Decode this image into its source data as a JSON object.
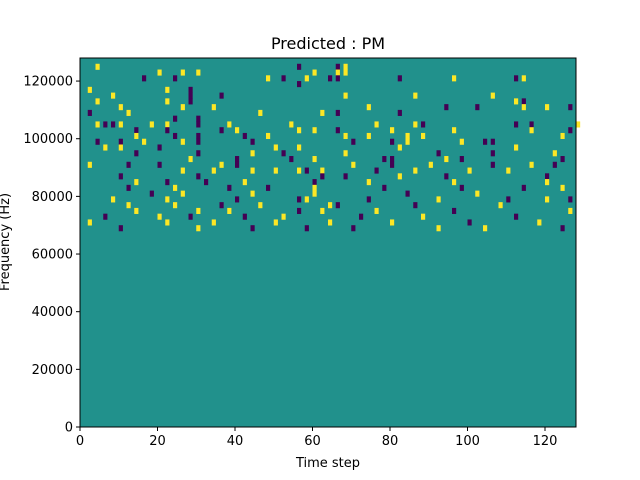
{
  "chart_data": {
    "type": "heatmap",
    "title": "Predicted : PM",
    "xlabel": "Time step",
    "ylabel": "Frequency (Hz)",
    "xlim": [
      0,
      128
    ],
    "ylim": [
      0,
      128000
    ],
    "x_ticks": [
      "0",
      "20",
      "40",
      "60",
      "80",
      "100",
      "120"
    ],
    "y_ticks": [
      "0",
      "20000",
      "40000",
      "60000",
      "80000",
      "100000",
      "120000"
    ],
    "n_time_steps": 128,
    "n_freq_bins": 64,
    "bin_height_hz": 2000,
    "background_value": 0,
    "colors": {
      "low": "#440154",
      "mid": "#21918c",
      "high": "#fde725"
    },
    "cells": [
      {
        "t": 4,
        "f": 62,
        "v": 1
      },
      {
        "t": 56,
        "f": 62,
        "v": -1
      },
      {
        "t": 66,
        "f": 62,
        "v": -1
      },
      {
        "t": 68,
        "f": 62,
        "v": 1
      },
      {
        "t": 68,
        "f": 61,
        "v": 1
      },
      {
        "t": 20,
        "f": 61,
        "v": 1
      },
      {
        "t": 26,
        "f": 61,
        "v": 1
      },
      {
        "t": 30,
        "f": 61,
        "v": 1
      },
      {
        "t": 60,
        "f": 61,
        "v": 1
      },
      {
        "t": 66,
        "f": 61,
        "v": 1
      },
      {
        "t": 66,
        "f": 60,
        "v": -1
      },
      {
        "t": 16,
        "f": 60,
        "v": -1
      },
      {
        "t": 24,
        "f": 60,
        "v": -1
      },
      {
        "t": 48,
        "f": 60,
        "v": 1
      },
      {
        "t": 52,
        "f": 60,
        "v": -1
      },
      {
        "t": 58,
        "f": 60,
        "v": 1
      },
      {
        "t": 64,
        "f": 60,
        "v": -1
      },
      {
        "t": 82,
        "f": 60,
        "v": -1
      },
      {
        "t": 96,
        "f": 60,
        "v": 1
      },
      {
        "t": 112,
        "f": 60,
        "v": -1
      },
      {
        "t": 114,
        "f": 60,
        "v": 1
      },
      {
        "t": 56,
        "f": 59,
        "v": -1
      },
      {
        "t": 22,
        "f": 58,
        "v": 1
      },
      {
        "t": 28,
        "f": 58,
        "v": -1
      },
      {
        "t": 2,
        "f": 58,
        "v": 1
      },
      {
        "t": 28,
        "f": 57,
        "v": -1
      },
      {
        "t": 36,
        "f": 57,
        "v": -1
      },
      {
        "t": 8,
        "f": 57,
        "v": 1
      },
      {
        "t": 68,
        "f": 57,
        "v": 1
      },
      {
        "t": 86,
        "f": 57,
        "v": 1
      },
      {
        "t": 106,
        "f": 57,
        "v": 1
      },
      {
        "t": 4,
        "f": 56,
        "v": 1
      },
      {
        "t": 22,
        "f": 56,
        "v": 1
      },
      {
        "t": 28,
        "f": 56,
        "v": -1
      },
      {
        "t": 112,
        "f": 56,
        "v": 1
      },
      {
        "t": 114,
        "f": 56,
        "v": -1
      },
      {
        "t": 10,
        "f": 55,
        "v": 1
      },
      {
        "t": 26,
        "f": 55,
        "v": 1
      },
      {
        "t": 34,
        "f": 55,
        "v": 1
      },
      {
        "t": 74,
        "f": 55,
        "v": 1
      },
      {
        "t": 94,
        "f": 55,
        "v": -1
      },
      {
        "t": 102,
        "f": 55,
        "v": -1
      },
      {
        "t": 114,
        "f": 55,
        "v": 1
      },
      {
        "t": 120,
        "f": 55,
        "v": 1
      },
      {
        "t": 126,
        "f": 55,
        "v": -1
      },
      {
        "t": 2,
        "f": 54,
        "v": -1
      },
      {
        "t": 12,
        "f": 54,
        "v": 1
      },
      {
        "t": 46,
        "f": 54,
        "v": 1
      },
      {
        "t": 62,
        "f": 54,
        "v": 1
      },
      {
        "t": 66,
        "f": 54,
        "v": -1
      },
      {
        "t": 82,
        "f": 54,
        "v": -1
      },
      {
        "t": 24,
        "f": 53,
        "v": -1
      },
      {
        "t": 30,
        "f": 53,
        "v": -1
      },
      {
        "t": 4,
        "f": 52,
        "v": 1
      },
      {
        "t": 6,
        "f": 52,
        "v": -1
      },
      {
        "t": 8,
        "f": 52,
        "v": -1
      },
      {
        "t": 10,
        "f": 52,
        "v": 1
      },
      {
        "t": 18,
        "f": 52,
        "v": 1
      },
      {
        "t": 22,
        "f": 52,
        "v": 1
      },
      {
        "t": 30,
        "f": 52,
        "v": -1
      },
      {
        "t": 38,
        "f": 52,
        "v": 1
      },
      {
        "t": 54,
        "f": 52,
        "v": 1
      },
      {
        "t": 76,
        "f": 52,
        "v": 1
      },
      {
        "t": 86,
        "f": 52,
        "v": 1
      },
      {
        "t": 88,
        "f": 52,
        "v": -1
      },
      {
        "t": 112,
        "f": 52,
        "v": -1
      },
      {
        "t": 116,
        "f": 52,
        "v": -1
      },
      {
        "t": 128,
        "f": 52,
        "v": 1
      },
      {
        "t": 14,
        "f": 51,
        "v": -1
      },
      {
        "t": 22,
        "f": 51,
        "v": -1
      },
      {
        "t": 36,
        "f": 51,
        "v": -1
      },
      {
        "t": 40,
        "f": 51,
        "v": 1
      },
      {
        "t": 56,
        "f": 51,
        "v": 1
      },
      {
        "t": 60,
        "f": 51,
        "v": 1
      },
      {
        "t": 66,
        "f": 51,
        "v": -1
      },
      {
        "t": 80,
        "f": 51,
        "v": 1
      },
      {
        "t": 96,
        "f": 51,
        "v": 1
      },
      {
        "t": 116,
        "f": 51,
        "v": 1
      },
      {
        "t": 126,
        "f": 51,
        "v": -1
      },
      {
        "t": 14,
        "f": 50,
        "v": 1
      },
      {
        "t": 24,
        "f": 50,
        "v": -1
      },
      {
        "t": 30,
        "f": 50,
        "v": -1
      },
      {
        "t": 42,
        "f": 50,
        "v": -1
      },
      {
        "t": 48,
        "f": 50,
        "v": 1
      },
      {
        "t": 68,
        "f": 50,
        "v": 1
      },
      {
        "t": 74,
        "f": 50,
        "v": 1
      },
      {
        "t": 84,
        "f": 50,
        "v": 1
      },
      {
        "t": 88,
        "f": 50,
        "v": 1
      },
      {
        "t": 124,
        "f": 50,
        "v": 1
      },
      {
        "t": 4,
        "f": 49,
        "v": -1
      },
      {
        "t": 10,
        "f": 49,
        "v": -1
      },
      {
        "t": 16,
        "f": 49,
        "v": 1
      },
      {
        "t": 26,
        "f": 49,
        "v": 1
      },
      {
        "t": 30,
        "f": 49,
        "v": -1
      },
      {
        "t": 44,
        "f": 49,
        "v": -1
      },
      {
        "t": 70,
        "f": 49,
        "v": -1
      },
      {
        "t": 80,
        "f": 49,
        "v": -1
      },
      {
        "t": 84,
        "f": 49,
        "v": 1
      },
      {
        "t": 98,
        "f": 49,
        "v": 1
      },
      {
        "t": 104,
        "f": 49,
        "v": -1
      },
      {
        "t": 106,
        "f": 49,
        "v": -1
      },
      {
        "t": 6,
        "f": 48,
        "v": 1
      },
      {
        "t": 10,
        "f": 48,
        "v": 1
      },
      {
        "t": 20,
        "f": 48,
        "v": -1
      },
      {
        "t": 50,
        "f": 48,
        "v": 1
      },
      {
        "t": 56,
        "f": 48,
        "v": 1
      },
      {
        "t": 82,
        "f": 48,
        "v": 1
      },
      {
        "t": 112,
        "f": 48,
        "v": 1
      },
      {
        "t": 14,
        "f": 47,
        "v": -1
      },
      {
        "t": 30,
        "f": 47,
        "v": -1
      },
      {
        "t": 44,
        "f": 47,
        "v": 1
      },
      {
        "t": 52,
        "f": 47,
        "v": -1
      },
      {
        "t": 68,
        "f": 47,
        "v": 1
      },
      {
        "t": 92,
        "f": 47,
        "v": -1
      },
      {
        "t": 106,
        "f": 47,
        "v": -1
      },
      {
        "t": 122,
        "f": 47,
        "v": 1
      },
      {
        "t": 28,
        "f": 46,
        "v": 1
      },
      {
        "t": 40,
        "f": 46,
        "v": -1
      },
      {
        "t": 54,
        "f": 46,
        "v": -1
      },
      {
        "t": 60,
        "f": 46,
        "v": 1
      },
      {
        "t": 78,
        "f": 46,
        "v": -1
      },
      {
        "t": 80,
        "f": 46,
        "v": -1
      },
      {
        "t": 94,
        "f": 46,
        "v": 1
      },
      {
        "t": 98,
        "f": 46,
        "v": -1
      },
      {
        "t": 124,
        "f": 46,
        "v": -1
      },
      {
        "t": 12,
        "f": 45,
        "v": -1
      },
      {
        "t": 20,
        "f": 45,
        "v": -1
      },
      {
        "t": 36,
        "f": 45,
        "v": 1
      },
      {
        "t": 40,
        "f": 45,
        "v": -1
      },
      {
        "t": 2,
        "f": 45,
        "v": 1
      },
      {
        "t": 70,
        "f": 45,
        "v": 1
      },
      {
        "t": 80,
        "f": 45,
        "v": -1
      },
      {
        "t": 90,
        "f": 45,
        "v": 1
      },
      {
        "t": 106,
        "f": 45,
        "v": -1
      },
      {
        "t": 116,
        "f": 45,
        "v": 1
      },
      {
        "t": 122,
        "f": 45,
        "v": -1
      },
      {
        "t": 26,
        "f": 44,
        "v": 1
      },
      {
        "t": 34,
        "f": 44,
        "v": 1
      },
      {
        "t": 44,
        "f": 44,
        "v": 1
      },
      {
        "t": 50,
        "f": 44,
        "v": 1
      },
      {
        "t": 56,
        "f": 44,
        "v": 1
      },
      {
        "t": 58,
        "f": 44,
        "v": -1
      },
      {
        "t": 62,
        "f": 44,
        "v": 1
      },
      {
        "t": 76,
        "f": 44,
        "v": -1
      },
      {
        "t": 86,
        "f": 44,
        "v": 1
      },
      {
        "t": 100,
        "f": 44,
        "v": 1
      },
      {
        "t": 110,
        "f": 44,
        "v": 1
      },
      {
        "t": 10,
        "f": 43,
        "v": -1
      },
      {
        "t": 30,
        "f": 43,
        "v": -1
      },
      {
        "t": 62,
        "f": 43,
        "v": -1
      },
      {
        "t": 68,
        "f": 43,
        "v": -1
      },
      {
        "t": 82,
        "f": 43,
        "v": 1
      },
      {
        "t": 94,
        "f": 43,
        "v": -1
      },
      {
        "t": 120,
        "f": 43,
        "v": -1
      },
      {
        "t": 14,
        "f": 42,
        "v": 1
      },
      {
        "t": 22,
        "f": 42,
        "v": -1
      },
      {
        "t": 32,
        "f": 42,
        "v": -1
      },
      {
        "t": 42,
        "f": 42,
        "v": 1
      },
      {
        "t": 60,
        "f": 42,
        "v": -1
      },
      {
        "t": 74,
        "f": 42,
        "v": 1
      },
      {
        "t": 96,
        "f": 42,
        "v": 1
      },
      {
        "t": 120,
        "f": 42,
        "v": 1
      },
      {
        "t": 12,
        "f": 41,
        "v": -1
      },
      {
        "t": 24,
        "f": 41,
        "v": 1
      },
      {
        "t": 38,
        "f": 41,
        "v": -1
      },
      {
        "t": 48,
        "f": 41,
        "v": -1
      },
      {
        "t": 60,
        "f": 41,
        "v": 1
      },
      {
        "t": 78,
        "f": 41,
        "v": -1
      },
      {
        "t": 98,
        "f": 41,
        "v": -1
      },
      {
        "t": 114,
        "f": 41,
        "v": -1
      },
      {
        "t": 124,
        "f": 41,
        "v": 1
      },
      {
        "t": 18,
        "f": 40,
        "v": -1
      },
      {
        "t": 26,
        "f": 40,
        "v": 1
      },
      {
        "t": 44,
        "f": 40,
        "v": 1
      },
      {
        "t": 60,
        "f": 40,
        "v": 1
      },
      {
        "t": 84,
        "f": 40,
        "v": -1
      },
      {
        "t": 102,
        "f": 40,
        "v": 1
      },
      {
        "t": 8,
        "f": 39,
        "v": 1
      },
      {
        "t": 22,
        "f": 39,
        "v": 1
      },
      {
        "t": 40,
        "f": 39,
        "v": -1
      },
      {
        "t": 56,
        "f": 39,
        "v": -1
      },
      {
        "t": 58,
        "f": 39,
        "v": 1
      },
      {
        "t": 74,
        "f": 39,
        "v": -1
      },
      {
        "t": 92,
        "f": 39,
        "v": 1
      },
      {
        "t": 110,
        "f": 39,
        "v": -1
      },
      {
        "t": 120,
        "f": 39,
        "v": 1
      },
      {
        "t": 126,
        "f": 39,
        "v": -1
      },
      {
        "t": 12,
        "f": 38,
        "v": 1
      },
      {
        "t": 24,
        "f": 38,
        "v": 1
      },
      {
        "t": 36,
        "f": 38,
        "v": -1
      },
      {
        "t": 46,
        "f": 38,
        "v": 1
      },
      {
        "t": 64,
        "f": 38,
        "v": 1
      },
      {
        "t": 66,
        "f": 38,
        "v": -1
      },
      {
        "t": 86,
        "f": 38,
        "v": -1
      },
      {
        "t": 108,
        "f": 38,
        "v": 1
      },
      {
        "t": 14,
        "f": 37,
        "v": 1
      },
      {
        "t": 30,
        "f": 37,
        "v": 1
      },
      {
        "t": 38,
        "f": 37,
        "v": 1
      },
      {
        "t": 56,
        "f": 37,
        "v": -1
      },
      {
        "t": 62,
        "f": 37,
        "v": 1
      },
      {
        "t": 76,
        "f": 37,
        "v": 1
      },
      {
        "t": 96,
        "f": 37,
        "v": -1
      },
      {
        "t": 126,
        "f": 37,
        "v": 1
      },
      {
        "t": 6,
        "f": 36,
        "v": -1
      },
      {
        "t": 20,
        "f": 36,
        "v": 1
      },
      {
        "t": 28,
        "f": 36,
        "v": -1
      },
      {
        "t": 42,
        "f": 36,
        "v": -1
      },
      {
        "t": 52,
        "f": 36,
        "v": 1
      },
      {
        "t": 72,
        "f": 36,
        "v": -1
      },
      {
        "t": 88,
        "f": 36,
        "v": 1
      },
      {
        "t": 112,
        "f": 36,
        "v": -1
      },
      {
        "t": 2,
        "f": 35,
        "v": 1
      },
      {
        "t": 22,
        "f": 35,
        "v": 1
      },
      {
        "t": 34,
        "f": 35,
        "v": 1
      },
      {
        "t": 50,
        "f": 35,
        "v": 1
      },
      {
        "t": 64,
        "f": 35,
        "v": 1
      },
      {
        "t": 80,
        "f": 35,
        "v": 1
      },
      {
        "t": 100,
        "f": 35,
        "v": -1
      },
      {
        "t": 118,
        "f": 35,
        "v": 1
      },
      {
        "t": 10,
        "f": 34,
        "v": -1
      },
      {
        "t": 30,
        "f": 34,
        "v": 1
      },
      {
        "t": 44,
        "f": 34,
        "v": -1
      },
      {
        "t": 58,
        "f": 34,
        "v": -1
      },
      {
        "t": 70,
        "f": 34,
        "v": -1
      },
      {
        "t": 92,
        "f": 34,
        "v": 1
      },
      {
        "t": 104,
        "f": 34,
        "v": 1
      },
      {
        "t": 124,
        "f": 34,
        "v": -1
      }
    ]
  }
}
